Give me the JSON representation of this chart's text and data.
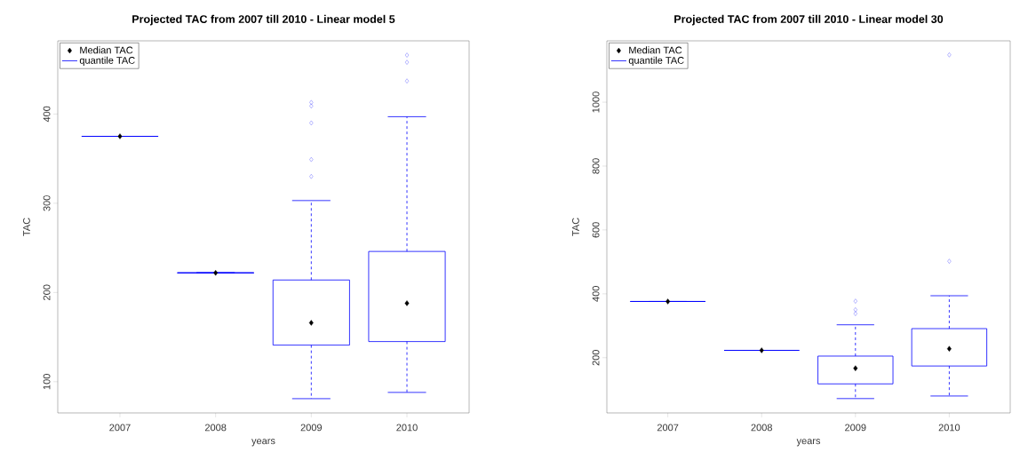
{
  "chart_data": [
    {
      "type": "box",
      "title": "Projected TAC from 2007 till 2010 - Linear model 5",
      "xlabel": "years",
      "ylabel": "TAC",
      "categories": [
        "2007",
        "2008",
        "2009",
        "2010"
      ],
      "ylim": [
        65,
        482
      ],
      "yticks": [
        100,
        200,
        300,
        400
      ],
      "grid": false,
      "legend": "top left",
      "series": [
        {
          "type": "scatter",
          "name": "Median TAC",
          "color": "#000000",
          "marker": "diamond",
          "values": [
            375,
            222,
            166,
            188
          ]
        },
        {
          "type": "box",
          "name": "quantile TAC",
          "color": "#0000ff",
          "line_style": "dashed",
          "boxes": [
            {
              "low": 375,
              "q1": 375,
              "q3": 375,
              "high": 375
            },
            {
              "low": 222,
              "q1": 222,
              "q3": 222,
              "high": 222
            },
            {
              "low": 81,
              "q1": 141,
              "q3": 214,
              "high": 303,
              "outliers": [
                413,
                409,
                390,
                349,
                330
              ]
            },
            {
              "low": 88,
              "q1": 145,
              "q3": 246,
              "high": 397,
              "outliers": [
                466,
                458,
                437
              ]
            }
          ]
        }
      ]
    },
    {
      "type": "box",
      "title": "Projected TAC from 2007 till 2010 - Linear model 30",
      "xlabel": "years",
      "ylabel": "TAC",
      "categories": [
        "2007",
        "2008",
        "2009",
        "2010"
      ],
      "ylim": [
        27,
        1192
      ],
      "yticks": [
        200,
        400,
        600,
        800,
        1000
      ],
      "grid": false,
      "legend": "top left",
      "series": [
        {
          "type": "scatter",
          "name": "Median TAC",
          "color": "#000000",
          "marker": "diamond",
          "values": [
            376,
            223,
            167,
            228
          ]
        },
        {
          "type": "box",
          "name": "quantile TAC",
          "color": "#0000ff",
          "line_style": "dashed",
          "boxes": [
            {
              "low": 376,
              "q1": 376,
              "q3": 376,
              "high": 376
            },
            {
              "low": 223,
              "q1": 223,
              "q3": 223,
              "high": 223
            },
            {
              "low": 72,
              "q1": 118,
              "q3": 205,
              "high": 303,
              "outliers": [
                377,
                350,
                338
              ]
            },
            {
              "low": 80,
              "q1": 174,
              "q3": 291,
              "high": 394,
              "outliers": [
                1148,
                502
              ]
            }
          ]
        }
      ]
    }
  ]
}
